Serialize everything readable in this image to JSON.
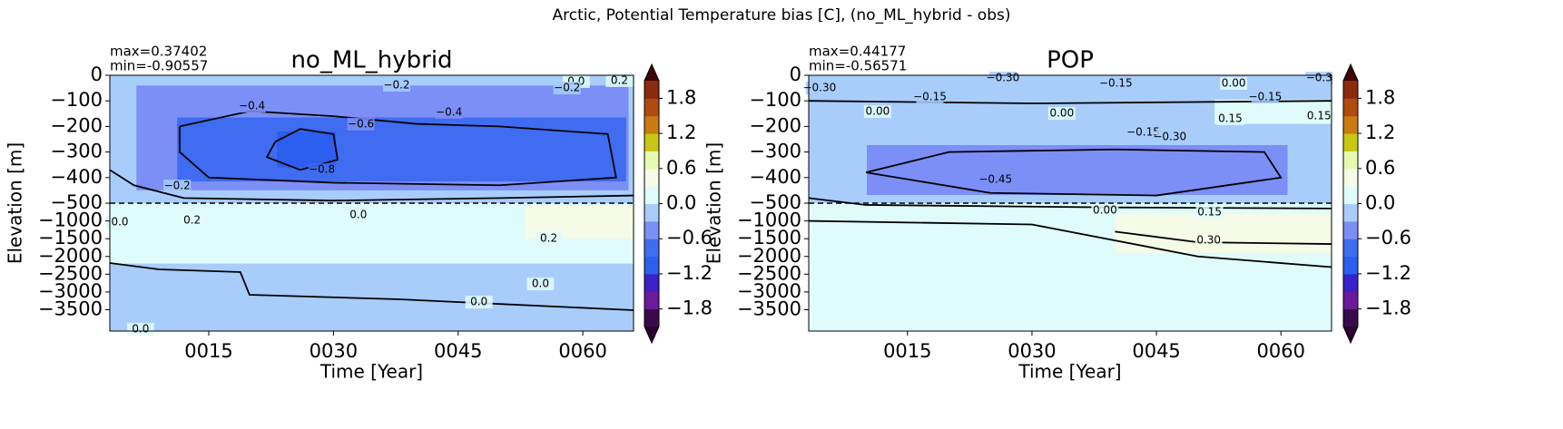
{
  "title": "Arctic, Potential Temperature bias [C], (no_ML_hybrid - obs)",
  "chart_data": [
    {
      "type": "contour",
      "title": "no_ML_hybrid",
      "stats": [
        "max=0.37402",
        "min=-0.90557"
      ],
      "x_label": "Time [Year]",
      "y_label": "Elevation [m]",
      "xlim": [
        3.1,
        66.1
      ],
      "xticks": [
        {
          "value": 15,
          "label": "0015"
        },
        {
          "value": 30,
          "label": "0030"
        },
        {
          "value": 45,
          "label": "0045"
        },
        {
          "value": 60,
          "label": "0060"
        }
      ],
      "ylim": [
        -4100,
        0
      ],
      "ybreak": -500,
      "yticks": [
        0,
        {
          "value": -100,
          "label": "−100"
        },
        {
          "value": -200,
          "label": "−200"
        },
        {
          "value": -300,
          "label": "−300"
        },
        {
          "value": -400,
          "label": "−400"
        },
        {
          "value": -500,
          "label": "−500"
        },
        {
          "value": -1000,
          "label": "−1000"
        },
        {
          "value": -1500,
          "label": "−1500"
        },
        {
          "value": -2000,
          "label": "−2000"
        },
        {
          "value": -2500,
          "label": "−2500"
        },
        {
          "value": -3000,
          "label": "−3000"
        },
        {
          "value": -3500,
          "label": "−3500"
        }
      ],
      "levels": [
        -2.1,
        -1.8,
        -1.5,
        -1.2,
        -0.9,
        -0.6,
        -0.3,
        0,
        0.3,
        0.6,
        0.9,
        1.2,
        1.5,
        1.8,
        2.1
      ],
      "colors": [
        "#3a0a4a",
        "#6a1a9a",
        "#3a22c8",
        "#2c5ef0",
        "#3f6cf0",
        "#7b8ff6",
        "#a8cdfb",
        "#e0fbfb",
        "#f5fbe6",
        "#e6f9b0",
        "#c8c814",
        "#c97a10",
        "#b04a0f",
        "#8b2a0e"
      ],
      "cticks": [
        1.8,
        1.2,
        0.6,
        {
          "value": 0,
          "label": "0.0"
        },
        {
          "value": -0.6,
          "label": "−0.6"
        },
        {
          "value": -1.2,
          "label": "−1.2"
        },
        {
          "value": -1.8,
          "label": "−1.8"
        }
      ],
      "regions": [
        {
          "value": -0.15,
          "x": [
            3.1,
            66.1
          ],
          "y": [
            0,
            -500
          ]
        },
        {
          "value": -0.15,
          "x": [
            3.1,
            66.1
          ],
          "y": [
            -500,
            -4100
          ]
        },
        {
          "value": 0.15,
          "x": [
            3.1,
            66.1
          ],
          "y": [
            -500,
            -2200
          ]
        },
        {
          "value": 0.45,
          "x": [
            53,
            66.1
          ],
          "y": [
            -550,
            -1500
          ]
        },
        {
          "value": -0.45,
          "x": [
            6.3,
            65.5
          ],
          "y": [
            -40,
            -450
          ]
        },
        {
          "value": -0.75,
          "x": [
            11.2,
            65.2
          ],
          "y": [
            -165,
            -415
          ]
        },
        {
          "value": -1.05,
          "x": [
            23.2,
            30.3
          ],
          "y": [
            -220,
            -360
          ]
        }
      ],
      "contours": [
        {
          "x": [
            3.1,
            9.0,
            18.8,
            19.9,
            37.9,
            66.1
          ],
          "y": [
            -2185,
            -2364,
            -2440,
            -3079,
            -3207,
            -3513
          ]
        },
        {
          "x": [
            11.5,
            20,
            30,
            40,
            50,
            63,
            64,
            50,
            30,
            15,
            11.5,
            11.5
          ],
          "y": [
            -200,
            -140,
            -160,
            -190,
            -200,
            -230,
            -400,
            -430,
            -420,
            -400,
            -300,
            -200
          ]
        },
        {
          "x": [
            23,
            26,
            30,
            30.5,
            26,
            22,
            23
          ],
          "y": [
            -260,
            -210,
            -230,
            -330,
            -370,
            -320,
            -260
          ]
        },
        {
          "x": [
            3.1,
            6,
            12,
            30,
            50,
            66.1
          ],
          "y": [
            -370,
            -430,
            -480,
            -490,
            -480,
            -470
          ]
        }
      ],
      "contour_labels": [
        {
          "value": 0,
          "label": "0.0",
          "x": 59.2,
          "y": -25
        },
        {
          "value": -0.2,
          "label": "−0.2",
          "x": 37.6,
          "y": -39
        },
        {
          "value": -0.2,
          "label": "−0.2",
          "x": 58.1,
          "y": -50
        },
        {
          "value": 0.2,
          "label": "0.2",
          "x": 64.4,
          "y": -21
        },
        {
          "value": -0.4,
          "label": "−0.4",
          "x": 20.2,
          "y": -121
        },
        {
          "value": -0.4,
          "label": "−0.4",
          "x": 43.9,
          "y": -145
        },
        {
          "value": -0.6,
          "label": "−0.6",
          "x": 33.3,
          "y": -191
        },
        {
          "value": -0.8,
          "label": "−0.8",
          "x": 28.6,
          "y": -369
        },
        {
          "value": -0.2,
          "label": "−0.2",
          "x": 11.2,
          "y": -433
        },
        {
          "value": 0,
          "label": "0.0",
          "x": 4.3,
          "y": -1036
        },
        {
          "value": 0.2,
          "label": "0.2",
          "x": 13.0,
          "y": -985
        },
        {
          "value": 0,
          "label": "0.0",
          "x": 33.0,
          "y": -832
        },
        {
          "value": 0.2,
          "label": "0.2",
          "x": 55.9,
          "y": -1495
        },
        {
          "value": 0,
          "label": "0.0",
          "x": 54.9,
          "y": -2775
        },
        {
          "value": 0,
          "label": "0.0",
          "x": 47.5,
          "y": -3285
        },
        {
          "value": 0,
          "label": "0.0",
          "x": 6.8,
          "y": -4050
        }
      ]
    },
    {
      "type": "contour",
      "title": "POP",
      "stats": [
        "max=0.44177",
        "min=-0.56571"
      ],
      "x_label": "Time [Year]",
      "y_label": "Elevation [m]",
      "xlim": [
        3.1,
        66.1
      ],
      "xticks": [
        {
          "value": 15,
          "label": "0015"
        },
        {
          "value": 30,
          "label": "0030"
        },
        {
          "value": 45,
          "label": "0045"
        },
        {
          "value": 60,
          "label": "0060"
        }
      ],
      "ylim": [
        -4100,
        0
      ],
      "ybreak": -500,
      "yticks": [
        0,
        {
          "value": -100,
          "label": "−100"
        },
        {
          "value": -200,
          "label": "−200"
        },
        {
          "value": -300,
          "label": "−300"
        },
        {
          "value": -400,
          "label": "−400"
        },
        {
          "value": -500,
          "label": "−500"
        },
        {
          "value": -1000,
          "label": "−1000"
        },
        {
          "value": -1500,
          "label": "−1500"
        },
        {
          "value": -2000,
          "label": "−2000"
        },
        {
          "value": -2500,
          "label": "−2500"
        },
        {
          "value": -3000,
          "label": "−3000"
        },
        {
          "value": -3500,
          "label": "−3500"
        }
      ],
      "levels": [
        -2.1,
        -1.8,
        -1.5,
        -1.2,
        -0.9,
        -0.6,
        -0.3,
        0,
        0.3,
        0.6,
        0.9,
        1.2,
        1.5,
        1.8,
        2.1
      ],
      "colors": [
        "#3a0a4a",
        "#6a1a9a",
        "#3a22c8",
        "#2c5ef0",
        "#3f6cf0",
        "#7b8ff6",
        "#a8cdfb",
        "#e0fbfb",
        "#f5fbe6",
        "#e6f9b0",
        "#c8c814",
        "#c97a10",
        "#b04a0f",
        "#8b2a0e"
      ],
      "cticks": [
        1.8,
        1.2,
        0.6,
        {
          "value": 0,
          "label": "0.0"
        },
        {
          "value": -0.6,
          "label": "−0.6"
        },
        {
          "value": -1.2,
          "label": "−1.2"
        },
        {
          "value": -1.8,
          "label": "−1.8"
        }
      ],
      "regions": [
        {
          "value": -0.15,
          "x": [
            3.1,
            66.1
          ],
          "y": [
            0,
            -500
          ]
        },
        {
          "value": 0.15,
          "x": [
            3.1,
            66.1
          ],
          "y": [
            -500,
            -4100
          ]
        },
        {
          "value": 0.15,
          "x": [
            52,
            66.1
          ],
          "y": [
            -95,
            -190
          ]
        },
        {
          "value": 0.45,
          "x": [
            40,
            66.1
          ],
          "y": [
            -800,
            -1900
          ]
        },
        {
          "value": -0.45,
          "x": [
            10.1,
            60.8
          ],
          "y": [
            -273,
            -468
          ]
        }
      ],
      "contours": [
        {
          "x": [
            10,
            20,
            40,
            58,
            60,
            45,
            25,
            10
          ],
          "y": [
            -380,
            -300,
            -290,
            -300,
            -400,
            -470,
            -460,
            -380
          ]
        },
        {
          "x": [
            3.1,
            10,
            40,
            66.1
          ],
          "y": [
            -480,
            -550,
            -620,
            -650
          ]
        },
        {
          "x": [
            40,
            50,
            66.1
          ],
          "y": [
            -1300,
            -1600,
            -1650
          ]
        },
        {
          "x": [
            3.1,
            30,
            50,
            66.1
          ],
          "y": [
            -1000,
            -1100,
            -2000,
            -2300
          ]
        },
        {
          "x": [
            3.1,
            30,
            66.1
          ],
          "y": [
            -100,
            -110,
            -100
          ]
        }
      ],
      "contour_labels": [
        {
          "value": -0.3,
          "label": "−0.30",
          "x": 4.4,
          "y": -50
        },
        {
          "value": -0.3,
          "label": "−0.30",
          "x": 26.5,
          "y": -11
        },
        {
          "value": -0.15,
          "label": "−0.15",
          "x": 40.1,
          "y": -32
        },
        {
          "value": 0,
          "label": "0.00",
          "x": 54.3,
          "y": -32
        },
        {
          "value": -0.3,
          "label": "−0.3",
          "x": 64.6,
          "y": -11
        },
        {
          "value": -0.15,
          "label": "−0.15",
          "x": 17.7,
          "y": -85
        },
        {
          "value": -0.15,
          "label": "−0.15",
          "x": 58.1,
          "y": -85
        },
        {
          "value": 0,
          "label": "0.00",
          "x": 11.4,
          "y": -142
        },
        {
          "value": 0,
          "label": "0.00",
          "x": 33.6,
          "y": -149
        },
        {
          "value": 0.15,
          "label": "0.15",
          "x": 53.9,
          "y": -170
        },
        {
          "value": 0.15,
          "label": "0.15",
          "x": 64.6,
          "y": -160
        },
        {
          "value": -0.15,
          "label": "−0.15",
          "x": 43.4,
          "y": -223
        },
        {
          "value": -0.3,
          "label": "−0.30",
          "x": 46.6,
          "y": -241
        },
        {
          "value": -0.45,
          "label": "−0.45",
          "x": 25.6,
          "y": -408
        },
        {
          "value": 0,
          "label": "0.00",
          "x": 38.8,
          "y": -704
        },
        {
          "value": 0.15,
          "label": "0.15",
          "x": 51.4,
          "y": -755
        },
        {
          "value": 0.3,
          "label": "0.30",
          "x": 51.3,
          "y": -1546
        }
      ]
    }
  ]
}
